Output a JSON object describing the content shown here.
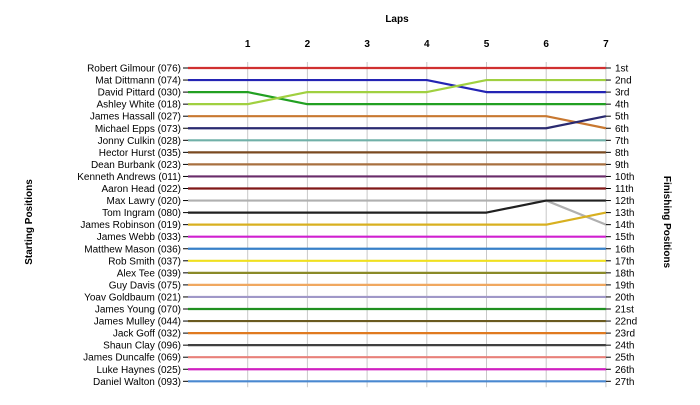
{
  "chart_data": {
    "type": "line",
    "title": "",
    "x_axis_label": "Laps",
    "left_axis_label": "Starting Positions",
    "right_axis_label": "Finishing Positions",
    "x": [
      0,
      1,
      2,
      3,
      4,
      5,
      6,
      7
    ],
    "x_tick_labels": [
      "1",
      "2",
      "3",
      "4",
      "5",
      "6",
      "7"
    ],
    "y_range": [
      1,
      27
    ],
    "drivers": [
      "Robert Gilmour (076)",
      "Mat Dittmann (074)",
      "David Pittard (030)",
      "Ashley White (018)",
      "James Hassall (027)",
      "Michael Epps (073)",
      "Jonny Culkin (028)",
      "Hector Hurst (035)",
      "Dean Burbank (023)",
      "Kenneth Andrews (011)",
      "Aaron Head (022)",
      "Max Lawry (020)",
      "Tom Ingram (080)",
      "James Robinson (019)",
      "James Webb (033)",
      "Matthew Mason (036)",
      "Rob Smith (037)",
      "Alex Tee (039)",
      "Guy Davis (075)",
      "Yoav Goldbaum (021)",
      "James Young (070)",
      "James Mulley (044)",
      "Jack Goff (032)",
      "Shaun Clay (096)",
      "James Duncalfe (069)",
      "Luke Haynes (025)",
      "Daniel Walton (093)"
    ],
    "finishing_labels": [
      "1st",
      "2nd",
      "3rd",
      "4th",
      "5th",
      "6th",
      "7th",
      "8th",
      "9th",
      "10th",
      "11th",
      "12th",
      "13th",
      "14th",
      "15th",
      "16th",
      "17th",
      "18th",
      "19th",
      "20th",
      "21st",
      "22nd",
      "23rd",
      "24th",
      "25th",
      "26th",
      "27th"
    ],
    "series": [
      {
        "color": "#d03030",
        "values": [
          1,
          1,
          1,
          1,
          1,
          1,
          1,
          1
        ]
      },
      {
        "color": "#2424b4",
        "values": [
          2,
          2,
          2,
          2,
          2,
          3,
          3,
          3
        ]
      },
      {
        "color": "#22a022",
        "values": [
          3,
          3,
          4,
          4,
          4,
          4,
          4,
          4
        ]
      },
      {
        "color": "#a0d040",
        "values": [
          4,
          4,
          3,
          3,
          3,
          2,
          2,
          2
        ]
      },
      {
        "color": "#c87830",
        "values": [
          5,
          5,
          5,
          5,
          5,
          5,
          5,
          6
        ]
      },
      {
        "color": "#2a2a70",
        "values": [
          6,
          6,
          6,
          6,
          6,
          6,
          6,
          5
        ]
      },
      {
        "color": "#70b0a8",
        "values": [
          7,
          7,
          7,
          7,
          7,
          7,
          7,
          7
        ]
      },
      {
        "color": "#7a4a20",
        "values": [
          8,
          8,
          8,
          8,
          8,
          8,
          8,
          8
        ]
      },
      {
        "color": "#a87040",
        "values": [
          9,
          9,
          9,
          9,
          9,
          9,
          9,
          9
        ]
      },
      {
        "color": "#6a2c6a",
        "values": [
          10,
          10,
          10,
          10,
          10,
          10,
          10,
          10
        ]
      },
      {
        "color": "#801818",
        "values": [
          11,
          11,
          11,
          11,
          11,
          11,
          11,
          11
        ]
      },
      {
        "color": "#b0b0b0",
        "values": [
          12,
          12,
          12,
          12,
          12,
          12,
          12,
          14
        ]
      },
      {
        "color": "#202020",
        "values": [
          13,
          13,
          13,
          13,
          13,
          13,
          12,
          12
        ]
      },
      {
        "color": "#d8b020",
        "values": [
          14,
          14,
          14,
          14,
          14,
          14,
          14,
          13
        ]
      },
      {
        "color": "#d020d0",
        "values": [
          15,
          15,
          15,
          15,
          15,
          15,
          15,
          15
        ]
      },
      {
        "color": "#3880c8",
        "values": [
          16,
          16,
          16,
          16,
          16,
          16,
          16,
          16
        ]
      },
      {
        "color": "#f0e020",
        "values": [
          17,
          17,
          17,
          17,
          17,
          17,
          17,
          17
        ]
      },
      {
        "color": "#8a8a28",
        "values": [
          18,
          18,
          18,
          18,
          18,
          18,
          18,
          18
        ]
      },
      {
        "color": "#f0a860",
        "values": [
          19,
          19,
          19,
          19,
          19,
          19,
          19,
          19
        ]
      },
      {
        "color": "#a098c8",
        "values": [
          20,
          20,
          20,
          20,
          20,
          20,
          20,
          20
        ]
      },
      {
        "color": "#209020",
        "values": [
          21,
          21,
          21,
          21,
          21,
          21,
          21,
          21
        ]
      },
      {
        "color": "#6a5a20",
        "values": [
          22,
          22,
          22,
          22,
          22,
          22,
          22,
          22
        ]
      },
      {
        "color": "#e07a20",
        "values": [
          23,
          23,
          23,
          23,
          23,
          23,
          23,
          23
        ]
      },
      {
        "color": "#404040",
        "values": [
          24,
          24,
          24,
          24,
          24,
          24,
          24,
          24
        ]
      },
      {
        "color": "#e8807a",
        "values": [
          25,
          25,
          25,
          25,
          25,
          25,
          25,
          25
        ]
      },
      {
        "color": "#d020c0",
        "values": [
          26,
          26,
          26,
          26,
          26,
          26,
          26,
          26
        ]
      },
      {
        "color": "#4a88d0",
        "values": [
          27,
          27,
          27,
          27,
          27,
          27,
          27,
          27
        ]
      }
    ],
    "grid": "vertical",
    "legend": "none"
  }
}
